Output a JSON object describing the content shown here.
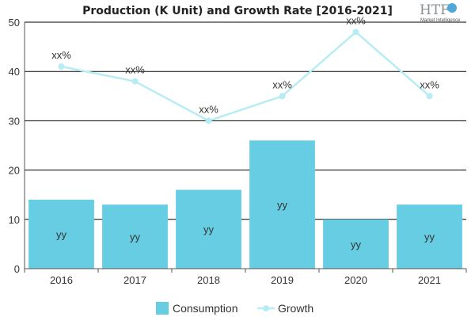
{
  "chart_data": {
    "type": "bar",
    "title": "Production (K Unit) and Growth Rate [2016-2021]",
    "xlabel": "",
    "ylabel": "",
    "categories": [
      "2016",
      "2017",
      "2018",
      "2019",
      "2020",
      "2021"
    ],
    "ylim": [
      0,
      50
    ],
    "yticks": [
      0,
      10,
      20,
      30,
      40,
      50
    ],
    "grid": true,
    "legend_position": "bottom",
    "series": [
      {
        "name": "Consumption",
        "type": "bar",
        "color": "#66cde3",
        "values": [
          14,
          13,
          16,
          26,
          10,
          13
        ],
        "data_labels": [
          "yy",
          "yy",
          "yy",
          "yy",
          "yy",
          "yy"
        ]
      },
      {
        "name": "Growth",
        "type": "line",
        "color": "#b8ecf5",
        "values": [
          41,
          38,
          30,
          35,
          48,
          35
        ],
        "data_labels": [
          "xx%",
          "xx%",
          "xx%",
          "xx%",
          "xx%",
          "xx%"
        ]
      }
    ]
  },
  "logo": {
    "text": "HTF",
    "subtext": "Market Intelligence"
  }
}
